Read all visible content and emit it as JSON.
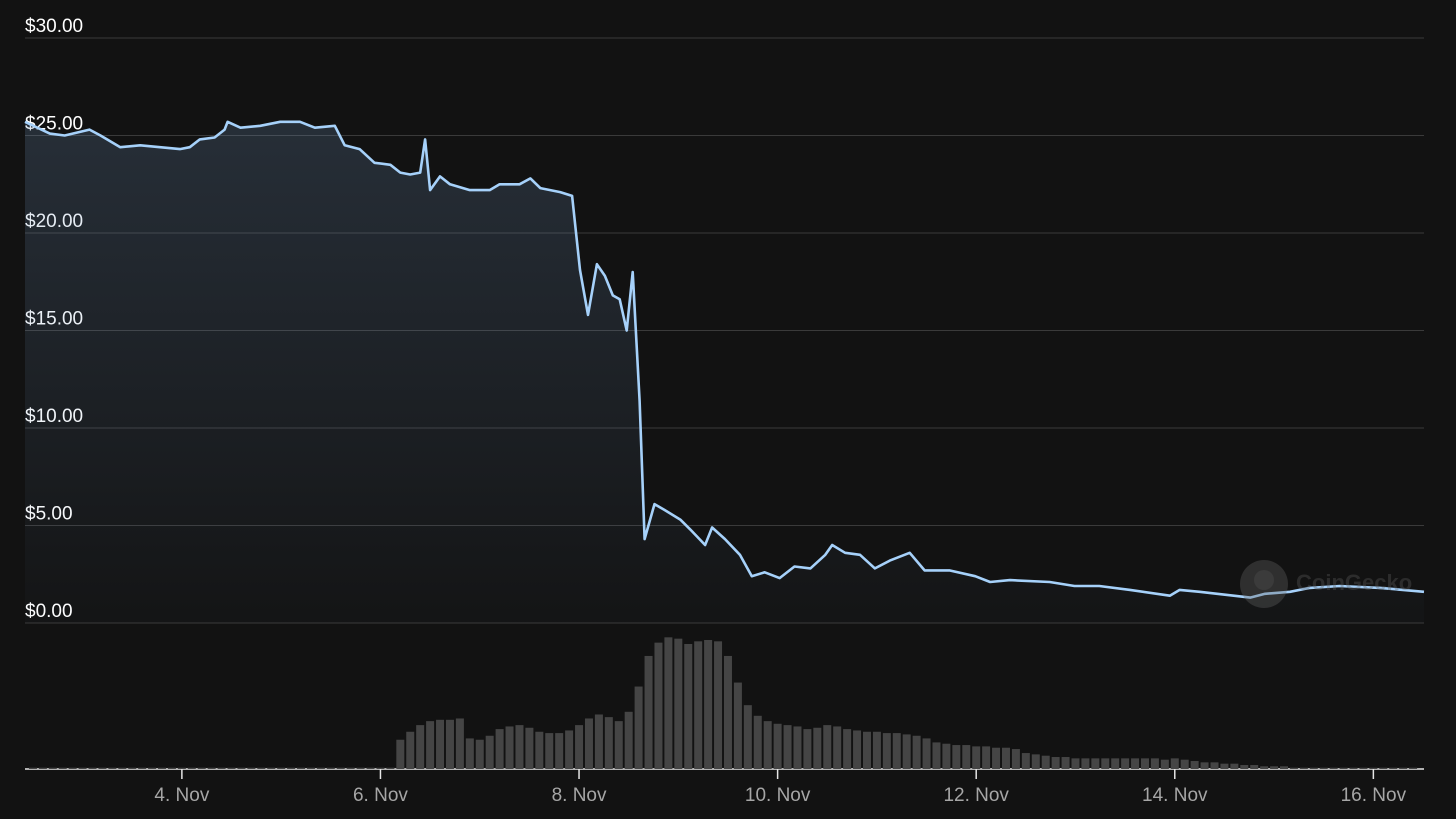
{
  "chart_data": [
    {
      "type": "line",
      "color": "#a6d1fa",
      "grid": true,
      "watermark": "CoinGecko",
      "xlim": [
        2.42,
        16.51
      ],
      "ylim": [
        0,
        30
      ],
      "yticks": [
        {
          "value": 0,
          "label": "$0.00"
        },
        {
          "value": 5,
          "label": "$5.00"
        },
        {
          "value": 10,
          "label": "$10.00"
        },
        {
          "value": 15,
          "label": "$15.00"
        },
        {
          "value": 20,
          "label": "$20.00"
        },
        {
          "value": 25,
          "label": "$25.00"
        },
        {
          "value": 30,
          "label": "$30.00"
        }
      ],
      "x": [
        2.42,
        2.67,
        2.82,
        3.07,
        3.18,
        3.38,
        3.58,
        3.78,
        3.98,
        4.08,
        4.18,
        4.33,
        4.43,
        4.46,
        4.59,
        4.79,
        4.99,
        5.19,
        5.34,
        5.54,
        5.64,
        5.79,
        5.94,
        6.1,
        6.2,
        6.3,
        6.4,
        6.45,
        6.5,
        6.6,
        6.7,
        6.9,
        7.1,
        7.2,
        7.4,
        7.51,
        7.61,
        7.81,
        7.93,
        8.01,
        8.09,
        8.18,
        8.26,
        8.34,
        8.41,
        8.48,
        8.54,
        8.61,
        8.66,
        8.76,
        8.86,
        9.02,
        9.12,
        9.27,
        9.34,
        9.47,
        9.62,
        9.74,
        9.87,
        10.02,
        10.17,
        10.33,
        10.48,
        10.55,
        10.68,
        10.83,
        10.98,
        11.13,
        11.33,
        11.48,
        11.73,
        11.99,
        12.14,
        12.34,
        12.74,
        12.99,
        13.24,
        13.55,
        13.95,
        14.05,
        14.25,
        14.76,
        14.91,
        15.16,
        15.36,
        15.66,
        16.07,
        16.51
      ],
      "values": [
        25.7,
        25.1,
        25.0,
        25.3,
        25.0,
        24.4,
        24.5,
        24.4,
        24.3,
        24.4,
        24.8,
        24.9,
        25.3,
        25.7,
        25.4,
        25.5,
        25.7,
        25.7,
        25.4,
        25.5,
        24.5,
        24.3,
        23.6,
        23.5,
        23.1,
        23.0,
        23.1,
        24.8,
        22.2,
        22.9,
        22.5,
        22.2,
        22.2,
        22.5,
        22.5,
        22.8,
        22.3,
        22.1,
        21.9,
        18.1,
        15.8,
        18.4,
        17.8,
        16.8,
        16.6,
        15.0,
        18.0,
        11.4,
        4.3,
        6.1,
        5.8,
        5.3,
        4.8,
        4.0,
        4.9,
        4.3,
        3.5,
        2.4,
        2.6,
        2.3,
        2.9,
        2.8,
        3.5,
        4.0,
        3.6,
        3.5,
        2.8,
        3.2,
        3.6,
        2.7,
        2.7,
        2.4,
        2.1,
        2.2,
        2.1,
        1.9,
        1.9,
        1.7,
        1.4,
        1.7,
        1.6,
        1.3,
        1.5,
        1.6,
        1.8,
        1.9,
        1.8,
        1.6
      ]
    },
    {
      "type": "bar",
      "color": "#454545",
      "xlim": [
        2.42,
        16.51
      ],
      "ylim": [
        0,
        100
      ],
      "xticks": [
        {
          "value": 4,
          "label": "4. Nov"
        },
        {
          "value": 6,
          "label": "6. Nov"
        },
        {
          "value": 8,
          "label": "8. Nov"
        },
        {
          "value": 10,
          "label": "10. Nov"
        },
        {
          "value": 12,
          "label": "12. Nov"
        },
        {
          "value": 14,
          "label": "14. Nov"
        },
        {
          "value": 16,
          "label": "16. Nov"
        }
      ],
      "x": [
        2.5,
        2.6,
        2.7,
        2.8,
        2.9,
        3.0,
        3.1,
        3.2,
        3.3,
        3.4,
        3.5,
        3.6,
        3.7,
        3.8,
        3.9,
        4.0,
        4.1,
        4.2,
        4.3,
        4.4,
        4.5,
        4.6,
        4.7,
        4.8,
        4.9,
        5.0,
        5.1,
        5.2,
        5.3,
        5.4,
        5.5,
        5.6,
        5.7,
        5.8,
        5.9,
        6.0,
        6.1,
        6.2,
        6.3,
        6.4,
        6.5,
        6.6,
        6.7,
        6.8,
        6.9,
        7.0,
        7.1,
        7.2,
        7.3,
        7.4,
        7.5,
        7.6,
        7.7,
        7.8,
        7.9,
        8.0,
        8.1,
        8.2,
        8.3,
        8.4,
        8.5,
        8.6,
        8.7,
        8.8,
        8.9,
        9.0,
        9.1,
        9.2,
        9.3,
        9.4,
        9.5,
        9.6,
        9.7,
        9.8,
        9.9,
        10.0,
        10.1,
        10.2,
        10.3,
        10.4,
        10.5,
        10.6,
        10.7,
        10.8,
        10.9,
        11.0,
        11.1,
        11.2,
        11.3,
        11.4,
        11.5,
        11.6,
        11.7,
        11.8,
        11.9,
        12.0,
        12.1,
        12.2,
        12.3,
        12.4,
        12.5,
        12.6,
        12.7,
        12.8,
        12.9,
        13.0,
        13.1,
        13.2,
        13.3,
        13.4,
        13.5,
        13.6,
        13.7,
        13.8,
        13.9,
        14.0,
        14.1,
        14.2,
        14.3,
        14.4,
        14.5,
        14.6,
        14.7,
        14.8,
        14.9,
        15.0,
        15.1,
        15.2,
        15.3,
        15.4,
        15.5,
        15.6,
        15.7,
        15.8,
        15.9,
        16.0,
        16.1,
        16.2,
        16.3,
        16.4
      ],
      "values": [
        1,
        1,
        1,
        1,
        1,
        1,
        1,
        1,
        1,
        1,
        1,
        1,
        1,
        1,
        1,
        1,
        1,
        1,
        1,
        1,
        1,
        1,
        1,
        1,
        1,
        1,
        1,
        1,
        1,
        1,
        1,
        1,
        1,
        1,
        1,
        1,
        1,
        22,
        28,
        33,
        36,
        37,
        37,
        38,
        23,
        22,
        25,
        30,
        32,
        33,
        31,
        28,
        27,
        27,
        29,
        33,
        38,
        41,
        39,
        36,
        43,
        62,
        85,
        95,
        99,
        98,
        94,
        96,
        97,
        96,
        85,
        65,
        48,
        40,
        36,
        34,
        33,
        32,
        30,
        31,
        33,
        32,
        30,
        29,
        28,
        28,
        27,
        27,
        26,
        25,
        23,
        20,
        19,
        18,
        18,
        17,
        17,
        16,
        16,
        15,
        12,
        11,
        10,
        9,
        9,
        8,
        8,
        8,
        8,
        8,
        8,
        8,
        8,
        8,
        7,
        8,
        7,
        6,
        5,
        5,
        4,
        4,
        3,
        3,
        2,
        2,
        2,
        1,
        1,
        1,
        1,
        1,
        1,
        1,
        1,
        1,
        1,
        1,
        1,
        1
      ]
    }
  ]
}
